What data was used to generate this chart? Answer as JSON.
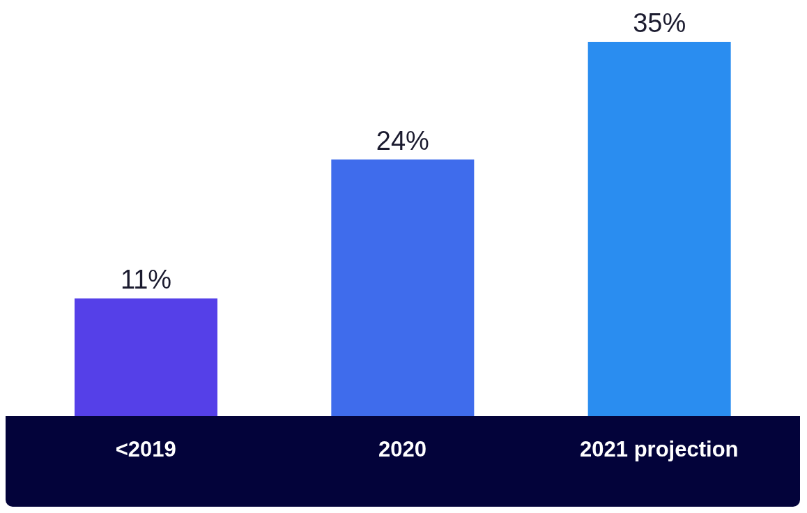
{
  "chart_data": {
    "type": "bar",
    "categories": [
      "<2019",
      "2020",
      "2021 projection"
    ],
    "values": [
      11,
      24,
      35
    ],
    "colors": [
      "#5540e8",
      "#3f6cec",
      "#2a8df0"
    ],
    "value_labels": [
      "11%",
      "24%",
      "35%"
    ]
  }
}
